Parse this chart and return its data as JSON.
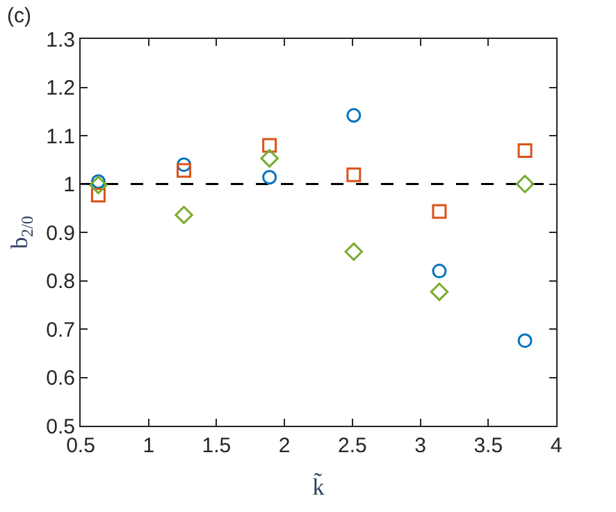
{
  "chart_data": {
    "type": "scatter",
    "title": "(c)",
    "xlabel": "k̃",
    "ylabel": "b$_{2/0}$",
    "x": [
      0.63,
      1.26,
      1.89,
      2.51,
      3.14,
      3.77
    ],
    "series": [
      {
        "color": "#0072bd",
        "marker": "circle",
        "values": [
          1.005,
          1.04,
          1.014,
          1.142,
          0.82,
          0.676
        ]
      },
      {
        "color": "#d95319",
        "marker": "square",
        "values": [
          0.977,
          1.028,
          1.08,
          1.019,
          0.943,
          1.069
        ]
      },
      {
        "color": "#77ac30",
        "marker": "diamond",
        "values": [
          0.998,
          0.936,
          1.053,
          0.86,
          0.777,
          1.0
        ]
      }
    ],
    "xlim": [
      0.5,
      4
    ],
    "xticks": [
      0.5,
      1,
      1.5,
      2,
      2.5,
      3,
      3.5,
      4
    ],
    "ylim": [
      0.5,
      1.3
    ],
    "yticks": [
      0.5,
      0.6,
      0.7,
      0.8,
      0.9,
      1,
      1.1,
      1.2,
      1.3
    ],
    "ref_lines": [
      {
        "axis": "y",
        "value": 1,
        "color": "#000000",
        "line_style": "dashed"
      }
    ],
    "grid": false,
    "legend": false
  }
}
